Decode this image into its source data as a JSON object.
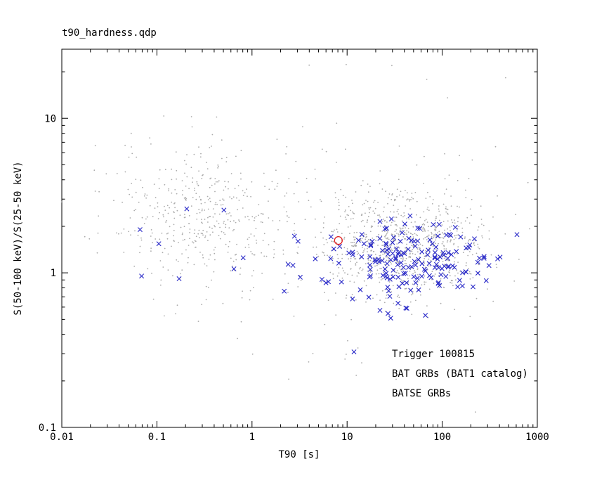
{
  "window": {
    "background": "#ffffff"
  },
  "chart_data": {
    "type": "scatter",
    "title": "t90_hardness.qdp",
    "xlabel": "T90 [s]",
    "ylabel": "S(50-100 keV)/S(25-50 keV)",
    "x_scale": "log",
    "y_scale": "log",
    "xlim": [
      0.01,
      1000
    ],
    "ylim": [
      0.1,
      28
    ],
    "x_tick_values": [
      0.01,
      0.1,
      1,
      10,
      100,
      1000
    ],
    "x_tick_labels": [
      "0.01",
      "0.1",
      "1",
      "10",
      "100",
      "1000"
    ],
    "y_tick_values": [
      0.1,
      1,
      10
    ],
    "y_tick_labels": [
      "0.1",
      "1",
      "10"
    ],
    "grid": false,
    "frame_color": "#000000",
    "legend": {
      "position": "bottom-right-inside",
      "entries": [
        {
          "label": "Trigger 100815",
          "color": "#e02020"
        },
        {
          "label": "BAT GRBs (BAT1 catalog)",
          "color": "#2a2ac8"
        },
        {
          "label": "BATSE GRBs",
          "color": "#ababab"
        }
      ]
    },
    "series": [
      {
        "name": "BATSE GRBs",
        "marker": "dot",
        "color": "#ababab",
        "n_points": 1400,
        "seed": 7,
        "log10_clusters": [
          {
            "desc": "long GRB population",
            "weight": 0.62,
            "mu": [
              1.58,
              0.19
            ],
            "sigma": [
              0.45,
              0.18
            ]
          },
          {
            "desc": "short GRB population",
            "weight": 0.3,
            "mu": [
              -0.55,
              0.36
            ],
            "sigma": [
              0.5,
              0.22
            ]
          },
          {
            "desc": "scatter halo",
            "weight": 0.08,
            "mu": [
              0.9,
              0.28
            ],
            "sigma": [
              1.05,
              0.5
            ]
          }
        ]
      },
      {
        "name": "BAT GRBs (BAT1 catalog)",
        "marker": "x",
        "color": "#2a2ac8",
        "n_points": 190,
        "seed": 13,
        "log10_clusters": [
          {
            "desc": "long GRB population",
            "weight": 0.9,
            "mu": [
              1.68,
              0.09
            ],
            "sigma": [
              0.45,
              0.13
            ]
          },
          {
            "desc": "short GRB population",
            "weight": 0.06,
            "mu": [
              -0.75,
              0.17
            ],
            "sigma": [
              0.38,
              0.12
            ]
          },
          {
            "desc": "soft outliers",
            "weight": 0.04,
            "mu": [
              1.0,
              -0.12
            ],
            "sigma": [
              0.7,
              0.28
            ]
          }
        ]
      },
      {
        "name": "Trigger 100815",
        "marker": "open-circle",
        "color": "#e02020",
        "points": [
          [
            8.1,
            1.62
          ]
        ]
      }
    ]
  }
}
